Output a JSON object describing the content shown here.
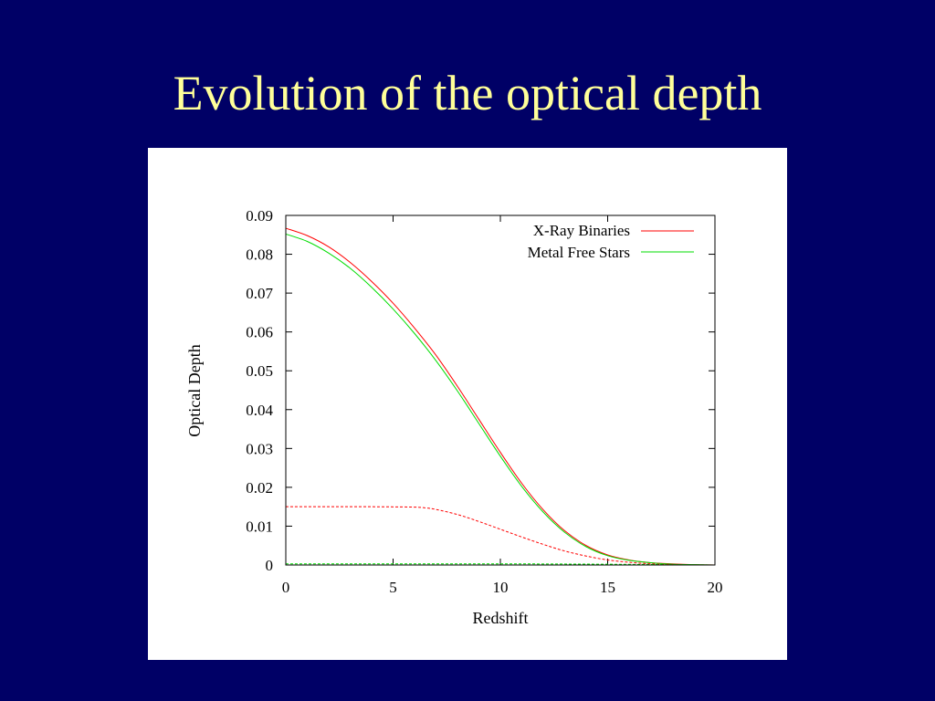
{
  "slide": {
    "title": "Evolution of the optical depth"
  },
  "chart_data": {
    "type": "line",
    "title": "",
    "xlabel": "Redshift",
    "ylabel": "Optical Depth",
    "xlim": [
      0,
      20
    ],
    "ylim": [
      0,
      0.09
    ],
    "xticks": [
      0,
      5,
      10,
      15,
      20
    ],
    "xtick_labels": [
      "0",
      "5",
      "10",
      "15",
      "20"
    ],
    "yticks": [
      0,
      0.01,
      0.02,
      0.03,
      0.04,
      0.05,
      0.06,
      0.07,
      0.08,
      0.09
    ],
    "ytick_labels": [
      "0",
      "0.01",
      "0.02",
      "0.03",
      "0.04",
      "0.05",
      "0.06",
      "0.07",
      "0.08",
      "0.09"
    ],
    "grid": false,
    "legend_position": "top-right",
    "series": [
      {
        "name": "X-Ray Binaries",
        "color": "#ff0000",
        "dash": "solid",
        "x": [
          0,
          1,
          2,
          3,
          4,
          5,
          6,
          7,
          8,
          9,
          10,
          11,
          12,
          13,
          14,
          15,
          16,
          17,
          18,
          19,
          20
        ],
        "y": [
          0.0867,
          0.0848,
          0.0819,
          0.0779,
          0.073,
          0.0674,
          0.061,
          0.054,
          0.046,
          0.0375,
          0.029,
          0.021,
          0.0142,
          0.0088,
          0.005,
          0.0026,
          0.0013,
          0.0006,
          0.0003,
          0.0001,
          0.0
        ]
      },
      {
        "name": "Metal Free Stars",
        "color": "#00dd00",
        "dash": "solid",
        "x": [
          0,
          1,
          2,
          3,
          4,
          5,
          6,
          7,
          8,
          9,
          10,
          11,
          12,
          13,
          14,
          15,
          16,
          17,
          18,
          19,
          20
        ],
        "y": [
          0.0852,
          0.0833,
          0.0803,
          0.0764,
          0.0715,
          0.0659,
          0.0596,
          0.0526,
          0.0448,
          0.0364,
          0.028,
          0.0202,
          0.0136,
          0.0084,
          0.0047,
          0.0024,
          0.0012,
          0.0006,
          0.0002,
          0.0001,
          0.0
        ]
      },
      {
        "color": "#ff0000",
        "dash": "dashed",
        "x": [
          0,
          2,
          4,
          6,
          6.5,
          7,
          8,
          9,
          10,
          11,
          12,
          13,
          14,
          15,
          16,
          17,
          18,
          19,
          20
        ],
        "y": [
          0.015,
          0.015,
          0.015,
          0.0149,
          0.0147,
          0.0143,
          0.013,
          0.0112,
          0.0092,
          0.0072,
          0.0053,
          0.0036,
          0.0023,
          0.0013,
          0.0007,
          0.0003,
          0.0001,
          0.0,
          0.0
        ]
      },
      {
        "color": "#00dd00",
        "dash": "dashed",
        "x": [
          0,
          5,
          10,
          15,
          20
        ],
        "y": [
          0.0003,
          0.0003,
          0.0003,
          0.0002,
          0.0
        ]
      }
    ]
  }
}
